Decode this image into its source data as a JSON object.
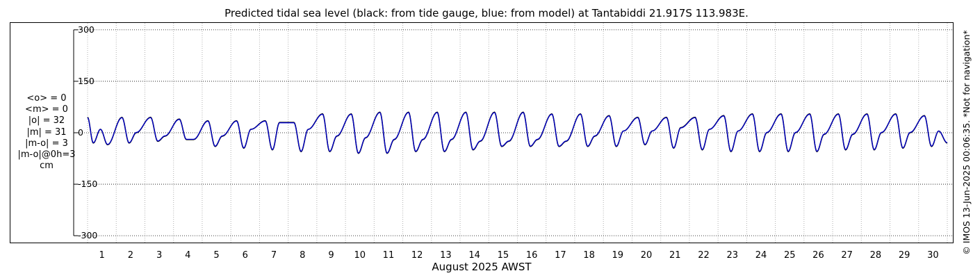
{
  "title": "Predicted tidal sea level (black: from tide gauge, blue: from model) at Tantabiddi 21.917S 113.983E.",
  "stats": [
    "<o> = 0",
    "<m> = 0",
    "|o| = 32",
    "|m| = 31",
    "|m-o| = 3",
    "|m-o|@0h=3",
    "cm"
  ],
  "credit": "© IMOS 13-Jun-2025 00:06:35. *Not for navigation*",
  "colors": {
    "observed": "#000000",
    "model": "#0000cc",
    "grid": "#b0b0b0"
  },
  "chart_data": {
    "type": "line",
    "title": "Predicted tidal sea level (black: from tide gauge, blue: from model) at Tantabiddi 21.917S 113.983E.",
    "xlabel": "August 2025 AWST",
    "ylabel": "",
    "xlim": [
      1,
      31
    ],
    "ylim": [
      -320,
      320
    ],
    "yticks": [
      -300,
      -150,
      0,
      150,
      300
    ],
    "ytick_labels": [
      "-300",
      "-150",
      "0",
      "150",
      "300"
    ],
    "xticks": [
      1,
      2,
      3,
      4,
      5,
      6,
      7,
      8,
      9,
      10,
      11,
      12,
      13,
      14,
      15,
      16,
      17,
      18,
      19,
      20,
      21,
      22,
      23,
      24,
      25,
      26,
      27,
      28,
      29,
      30
    ],
    "xtick_labels": [
      "1",
      "2",
      "3",
      "4",
      "5",
      "6",
      "7",
      "8",
      "9",
      "10",
      "11",
      "12",
      "13",
      "14",
      "15",
      "16",
      "17",
      "18",
      "19",
      "20",
      "21",
      "22",
      "23",
      "24",
      "25",
      "26",
      "27",
      "28",
      "29",
      "30"
    ],
    "grid": true,
    "series": [
      {
        "color": "#000000",
        "x": [
          1.0,
          1.2,
          1.45,
          1.7,
          2.2,
          2.45,
          2.7,
          3.2,
          3.45,
          3.7,
          4.2,
          4.45,
          4.7,
          5.2,
          5.45,
          5.7,
          6.2,
          6.45,
          6.7,
          7.2,
          7.45,
          7.7,
          8.2,
          8.45,
          8.7,
          9.2,
          9.45,
          9.7,
          10.2,
          10.45,
          10.7,
          11.2,
          11.45,
          11.7,
          12.2,
          12.45,
          12.7,
          13.2,
          13.45,
          13.7,
          14.2,
          14.45,
          14.7,
          15.2,
          15.45,
          15.7,
          16.2,
          16.45,
          16.7,
          17.2,
          17.45,
          17.7,
          18.2,
          18.45,
          18.7,
          19.2,
          19.45,
          19.7,
          20.2,
          20.45,
          20.7,
          21.2,
          21.45,
          21.7,
          22.2,
          22.45,
          22.7,
          23.2,
          23.45,
          23.7,
          24.2,
          24.45,
          24.7,
          25.2,
          25.45,
          25.7,
          26.2,
          26.45,
          26.7,
          27.2,
          27.45,
          27.7,
          28.2,
          28.45,
          28.7,
          29.2,
          29.45,
          29.7,
          30.2,
          30.45,
          30.7,
          31.0
        ],
        "y": [
          45,
          -30,
          10,
          -35,
          45,
          -30,
          0,
          45,
          -25,
          -10,
          40,
          -20,
          -20,
          35,
          -40,
          -10,
          35,
          -45,
          10,
          35,
          -50,
          30,
          30,
          -55,
          10,
          55,
          -55,
          -10,
          55,
          -60,
          -15,
          60,
          -60,
          -20,
          60,
          -55,
          -20,
          60,
          -55,
          -20,
          60,
          -50,
          -25,
          60,
          -40,
          -25,
          60,
          -40,
          -20,
          55,
          -40,
          -25,
          55,
          -40,
          -10,
          50,
          -40,
          5,
          45,
          -35,
          5,
          45,
          -45,
          15,
          45,
          -50,
          10,
          50,
          -55,
          5,
          55,
          -55,
          0,
          55,
          -55,
          0,
          55,
          -55,
          -5,
          55,
          -50,
          -5,
          55,
          -50,
          0,
          55,
          -45,
          0,
          50,
          -40,
          5,
          -30
        ]
      },
      {
        "color": "#0000cc",
        "x": [
          1.0,
          1.2,
          1.45,
          1.7,
          2.2,
          2.45,
          2.7,
          3.2,
          3.45,
          3.7,
          4.2,
          4.45,
          4.7,
          5.2,
          5.45,
          5.7,
          6.2,
          6.45,
          6.7,
          7.2,
          7.45,
          7.7,
          8.2,
          8.45,
          8.7,
          9.2,
          9.45,
          9.7,
          10.2,
          10.45,
          10.7,
          11.2,
          11.45,
          11.7,
          12.2,
          12.45,
          12.7,
          13.2,
          13.45,
          13.7,
          14.2,
          14.45,
          14.7,
          15.2,
          15.45,
          15.7,
          16.2,
          16.45,
          16.7,
          17.2,
          17.45,
          17.7,
          18.2,
          18.45,
          18.7,
          19.2,
          19.45,
          19.7,
          20.2,
          20.45,
          20.7,
          21.2,
          21.45,
          21.7,
          22.2,
          22.45,
          22.7,
          23.2,
          23.45,
          23.7,
          24.2,
          24.45,
          24.7,
          25.2,
          25.45,
          25.7,
          26.2,
          26.45,
          26.7,
          27.2,
          27.45,
          27.7,
          28.2,
          28.45,
          28.7,
          29.2,
          29.45,
          29.7,
          30.2,
          30.45,
          30.7,
          31.0
        ],
        "y": [
          44,
          -29,
          10,
          -34,
          44,
          -29,
          1,
          44,
          -24,
          -9,
          39,
          -19,
          -19,
          34,
          -39,
          -9,
          34,
          -44,
          10,
          34,
          -49,
          29,
          29,
          -54,
          10,
          54,
          -54,
          -9,
          54,
          -59,
          -14,
          59,
          -59,
          -19,
          59,
          -54,
          -19,
          59,
          -54,
          -19,
          59,
          -49,
          -24,
          59,
          -39,
          -24,
          59,
          -39,
          -19,
          54,
          -39,
          -24,
          54,
          -39,
          -9,
          49,
          -39,
          5,
          44,
          -34,
          5,
          44,
          -44,
          14,
          44,
          -49,
          10,
          49,
          -54,
          5,
          54,
          -54,
          1,
          54,
          -54,
          1,
          54,
          -54,
          -4,
          54,
          -49,
          -4,
          54,
          -49,
          1,
          54,
          -44,
          1,
          49,
          -39,
          5,
          -29
        ]
      }
    ]
  }
}
